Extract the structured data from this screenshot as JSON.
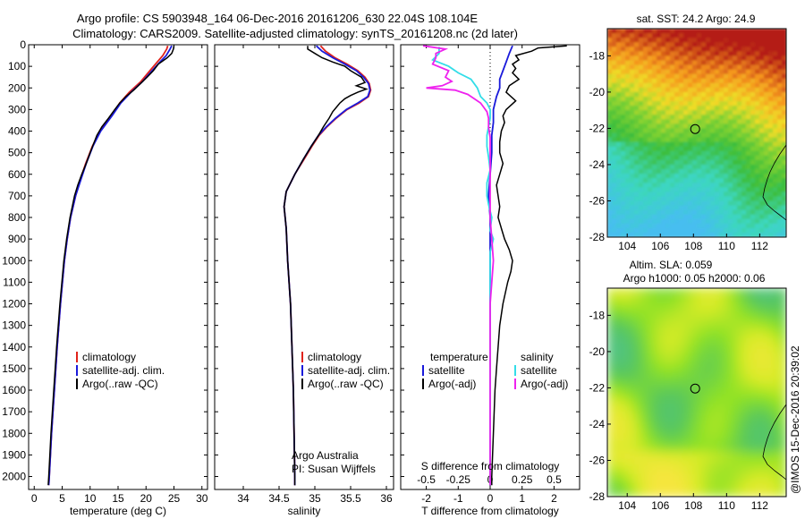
{
  "header": {
    "title_line1": "Argo profile: CS 5903948_164 06-Dec-2016 20161206_630 22.04S 108.104E",
    "title_line2": "Climatology: CARS2009. Satellite-adjusted climatology: synTS_20161208.nc (2d later)"
  },
  "credit": "@IMOS 15-Dec-2016 20:39:02",
  "colors": {
    "climatology": "#e0231b",
    "satellite": "#1a1adb",
    "argo": "#000000",
    "salinity_satellite": "#33dde8",
    "salinity_argo": "#ee22ee"
  },
  "chart_data": [
    {
      "type": "line",
      "id": "temperature",
      "xlabel": "temperature (deg C)",
      "xlim": [
        -1,
        31
      ],
      "ylim": [
        2060,
        0
      ],
      "xticks": [
        0,
        5,
        10,
        15,
        20,
        25,
        30
      ],
      "yticks": [
        0,
        100,
        200,
        300,
        400,
        500,
        600,
        700,
        800,
        900,
        1000,
        1100,
        1200,
        1300,
        1400,
        1500,
        1600,
        1700,
        1800,
        1900,
        2000
      ],
      "legend": {
        "placement": "lower-center",
        "entries": [
          "climatology",
          "satellite-adj. clim.",
          "Argo(..raw -QC)"
        ]
      },
      "series": [
        {
          "name": "climatology",
          "color": "#e0231b",
          "depth": [
            5,
            20,
            50,
            80,
            120,
            170,
            220,
            270,
            330,
            400,
            470,
            550,
            620,
            700,
            800,
            900,
            1000,
            1200,
            1400,
            1600,
            1800,
            2000,
            2040
          ],
          "values": [
            23.9,
            23.7,
            23.0,
            22.0,
            20.7,
            19.1,
            17.0,
            15.3,
            13.8,
            11.8,
            10.4,
            9.2,
            8.3,
            7.4,
            6.5,
            5.9,
            5.4,
            4.7,
            4.1,
            3.6,
            3.1,
            2.7,
            2.6
          ]
        },
        {
          "name": "satellite-adj. clim.",
          "color": "#1a1adb",
          "depth": [
            5,
            20,
            50,
            80,
            120,
            170,
            220,
            270,
            330,
            400,
            470,
            550,
            620,
            700,
            800,
            900,
            1000,
            1200,
            1400,
            1600,
            1800,
            2000,
            2040
          ],
          "values": [
            24.6,
            24.3,
            23.6,
            22.5,
            21.1,
            19.4,
            17.3,
            15.5,
            13.9,
            11.9,
            10.5,
            9.3,
            8.4,
            7.4,
            6.5,
            5.9,
            5.4,
            4.7,
            4.1,
            3.6,
            3.1,
            2.7,
            2.6
          ]
        },
        {
          "name": "Argo(..raw -QC)",
          "color": "#000000",
          "depth": [
            5,
            20,
            40,
            60,
            90,
            120,
            150,
            180,
            210,
            240,
            270,
            300,
            340,
            380,
            420,
            460,
            500,
            550,
            600,
            650,
            700,
            800,
            900,
            1000,
            1200,
            1400,
            1600,
            1800,
            2000,
            2040
          ],
          "values": [
            25.0,
            24.9,
            24.6,
            23.8,
            22.2,
            21.3,
            20.2,
            19.0,
            17.8,
            16.4,
            15.3,
            14.4,
            13.3,
            12.1,
            11.2,
            10.6,
            10.0,
            9.3,
            8.5,
            7.8,
            7.2,
            6.4,
            5.8,
            5.3,
            4.6,
            4.0,
            3.5,
            3.0,
            2.6,
            2.5
          ]
        }
      ]
    },
    {
      "type": "line",
      "id": "salinity",
      "xlabel": "salinity",
      "xlim": [
        33.6,
        36.1
      ],
      "ylim": [
        2060,
        0
      ],
      "xticks": [
        34,
        34.5,
        35,
        35.5,
        36
      ],
      "legend": {
        "placement": "lower-right",
        "entries": [
          "climatology",
          "satellite-adj. clim.",
          "Argo(..raw -QC)"
        ]
      },
      "annotations": [
        "Argo Australia",
        "PI: Susan Wijffels"
      ],
      "series": [
        {
          "name": "climatology",
          "color": "#e0231b",
          "depth": [
            5,
            30,
            60,
            90,
            120,
            150,
            180,
            210,
            240,
            270,
            300,
            340,
            380,
            420,
            470,
            530,
            600,
            680,
            750,
            850,
            1000,
            1200,
            1400,
            1600,
            1800,
            2000,
            2040
          ],
          "values": [
            35.08,
            35.15,
            35.28,
            35.45,
            35.6,
            35.7,
            35.76,
            35.78,
            35.75,
            35.62,
            35.45,
            35.3,
            35.17,
            35.06,
            34.96,
            34.85,
            34.72,
            34.6,
            34.57,
            34.6,
            34.62,
            34.66,
            34.68,
            34.7,
            34.71,
            34.72,
            34.72
          ]
        },
        {
          "name": "satellite-adj. clim.",
          "color": "#1a1adb",
          "depth": [
            5,
            30,
            60,
            90,
            120,
            150,
            180,
            210,
            240,
            270,
            300,
            340,
            380,
            420,
            470,
            530,
            600,
            680,
            750,
            850,
            1000,
            1200,
            1400,
            1600,
            1800,
            2000,
            2040
          ],
          "values": [
            35.02,
            35.1,
            35.25,
            35.42,
            35.58,
            35.68,
            35.75,
            35.77,
            35.74,
            35.6,
            35.44,
            35.29,
            35.16,
            35.05,
            34.95,
            34.84,
            34.72,
            34.6,
            34.57,
            34.6,
            34.62,
            34.66,
            34.68,
            34.7,
            34.71,
            34.72,
            34.72
          ]
        },
        {
          "name": "Argo(..raw -QC)",
          "color": "#000000",
          "depth": [
            5,
            20,
            40,
            60,
            80,
            100,
            120,
            150,
            175,
            190,
            205,
            220,
            235,
            250,
            270,
            290,
            310,
            340,
            380,
            420,
            470,
            530,
            600,
            680,
            750,
            850,
            1000,
            1200,
            1400,
            1600,
            1800,
            2000,
            2040
          ],
          "values": [
            34.9,
            34.9,
            35.0,
            35.1,
            35.25,
            35.42,
            35.5,
            35.65,
            35.7,
            35.58,
            35.72,
            35.6,
            35.5,
            35.42,
            35.35,
            35.3,
            35.25,
            35.2,
            35.12,
            35.05,
            34.95,
            34.84,
            34.72,
            34.6,
            34.57,
            34.6,
            34.62,
            34.66,
            34.68,
            34.7,
            34.71,
            34.72,
            34.72
          ]
        }
      ]
    },
    {
      "type": "line",
      "id": "difference",
      "xlabel": "T difference from climatology",
      "xlabel_top": "S difference from climatology",
      "xlim": [
        -2.8,
        2.8
      ],
      "ylim": [
        2060,
        0
      ],
      "xticks": [
        -2,
        -1,
        0,
        1,
        2
      ],
      "xticks_top_values": [
        -0.5,
        -0.25,
        0,
        0.25,
        0.5
      ],
      "xticks_top_labels": [
        "-0.5",
        "-0.25",
        "0",
        "0.25",
        "0.5"
      ],
      "zero_line": "dotted",
      "legend": {
        "placement": "lower-center",
        "headers": [
          "temperature",
          "salinity"
        ],
        "entries": [
          "satellite",
          "Argo(-adj)",
          "satellite",
          "Argo(-adj)"
        ]
      },
      "series": [
        {
          "name": "temperature satellite",
          "color": "#1a1adb",
          "depth": [
            5,
            40,
            80,
            120,
            160,
            200,
            240,
            300,
            360,
            420,
            500,
            600,
            700,
            800,
            900,
            1000,
            1200,
            1400,
            1600,
            1800,
            2000,
            2040
          ],
          "values": [
            0.7,
            0.6,
            0.5,
            0.4,
            0.3,
            0.3,
            0.2,
            0.1,
            0.1,
            0.05,
            0.05,
            0,
            -0.05,
            0,
            0,
            0,
            0,
            0,
            0,
            0,
            0,
            0
          ]
        },
        {
          "name": "temperature Argo(-adj)",
          "color": "#000000",
          "depth": [
            5,
            15,
            30,
            50,
            70,
            90,
            110,
            130,
            160,
            190,
            220,
            260,
            300,
            330,
            360,
            400,
            450,
            500,
            550,
            600,
            650,
            700,
            750,
            800,
            850,
            900,
            950,
            1000,
            1050,
            1100,
            1200,
            1300,
            1400,
            1500,
            1600,
            1800,
            2000,
            2040
          ],
          "values": [
            2.4,
            1.5,
            1.3,
            0.8,
            0.9,
            0.7,
            0.8,
            0.7,
            0.9,
            0.6,
            0.5,
            0.8,
            0.5,
            0.4,
            0.45,
            0.35,
            0.3,
            0.3,
            0.4,
            0.3,
            0.2,
            0.25,
            0.3,
            0.25,
            0.35,
            0.45,
            0.6,
            0.7,
            0.65,
            0.55,
            0.4,
            0.3,
            0.25,
            0.2,
            0.15,
            0.1,
            0.05,
            0.05
          ]
        },
        {
          "name": "salinity satellite",
          "color": "#33dde8",
          "depth": [
            10,
            40,
            70,
            100,
            130,
            160,
            200,
            240,
            270,
            300,
            340,
            380,
            420,
            470,
            520,
            580,
            640,
            700,
            740,
            800,
            860,
            900,
            960,
            1000,
            1100,
            1200,
            1400,
            1600,
            1800,
            2000,
            2040
          ],
          "values": [
            -1.6,
            -1.6,
            -1.8,
            -1.3,
            -1.0,
            -0.6,
            -0.4,
            -0.3,
            -0.1,
            0.0,
            0.0,
            -0.05,
            -0.1,
            -0.1,
            -0.05,
            0,
            -0.1,
            -0.1,
            -0.05,
            0.05,
            0.0,
            0.1,
            0.0,
            0.0,
            0.0,
            0.0,
            0.0,
            0.0,
            0.0,
            0.0,
            0.0
          ]
        },
        {
          "name": "salinity Argo(-adj)",
          "color": "#ee22ee",
          "depth": [
            5,
            20,
            40,
            60,
            90,
            120,
            150,
            170,
            190,
            200,
            210,
            230,
            250,
            270,
            290,
            310,
            340,
            380,
            430,
            500,
            600,
            700,
            800,
            900,
            1000,
            1100,
            1200,
            1400,
            1600,
            1800,
            2000,
            2040
          ],
          "values": [
            -2.1,
            -1.4,
            -1.7,
            -1.7,
            -1.8,
            -1.3,
            -1.4,
            -1.2,
            -1.5,
            -2.0,
            -1.1,
            -0.7,
            -0.5,
            -0.3,
            -0.2,
            -0.1,
            -0.05,
            -0.05,
            0,
            0,
            0,
            0,
            0,
            0.05,
            0.1,
            0.05,
            0,
            0,
            0,
            0,
            0,
            0
          ]
        }
      ]
    },
    {
      "type": "heatmap",
      "id": "sst_map",
      "title": "sat. SST: 24.2  Argo: 24.9",
      "xlim": [
        102.8,
        113.6
      ],
      "ylim": [
        -28,
        -16.5
      ],
      "xticks": [
        104,
        106,
        108,
        110,
        112
      ],
      "yticks": [
        -18,
        -20,
        -22,
        -24,
        -26,
        -28
      ],
      "marker": {
        "lon": 108.104,
        "lat": -22.04
      }
    },
    {
      "type": "heatmap",
      "id": "sla_map",
      "title_line1": "Altim. SLA: 0.059",
      "title_line2": "Argo h1000: 0.05  h2000: 0.06",
      "xlim": [
        102.8,
        113.6
      ],
      "ylim": [
        -28,
        -16.5
      ],
      "xticks": [
        104,
        106,
        108,
        110,
        112
      ],
      "yticks": [
        -18,
        -20,
        -22,
        -24,
        -26,
        -28
      ],
      "marker": {
        "lon": 108.104,
        "lat": -22.04
      }
    }
  ]
}
